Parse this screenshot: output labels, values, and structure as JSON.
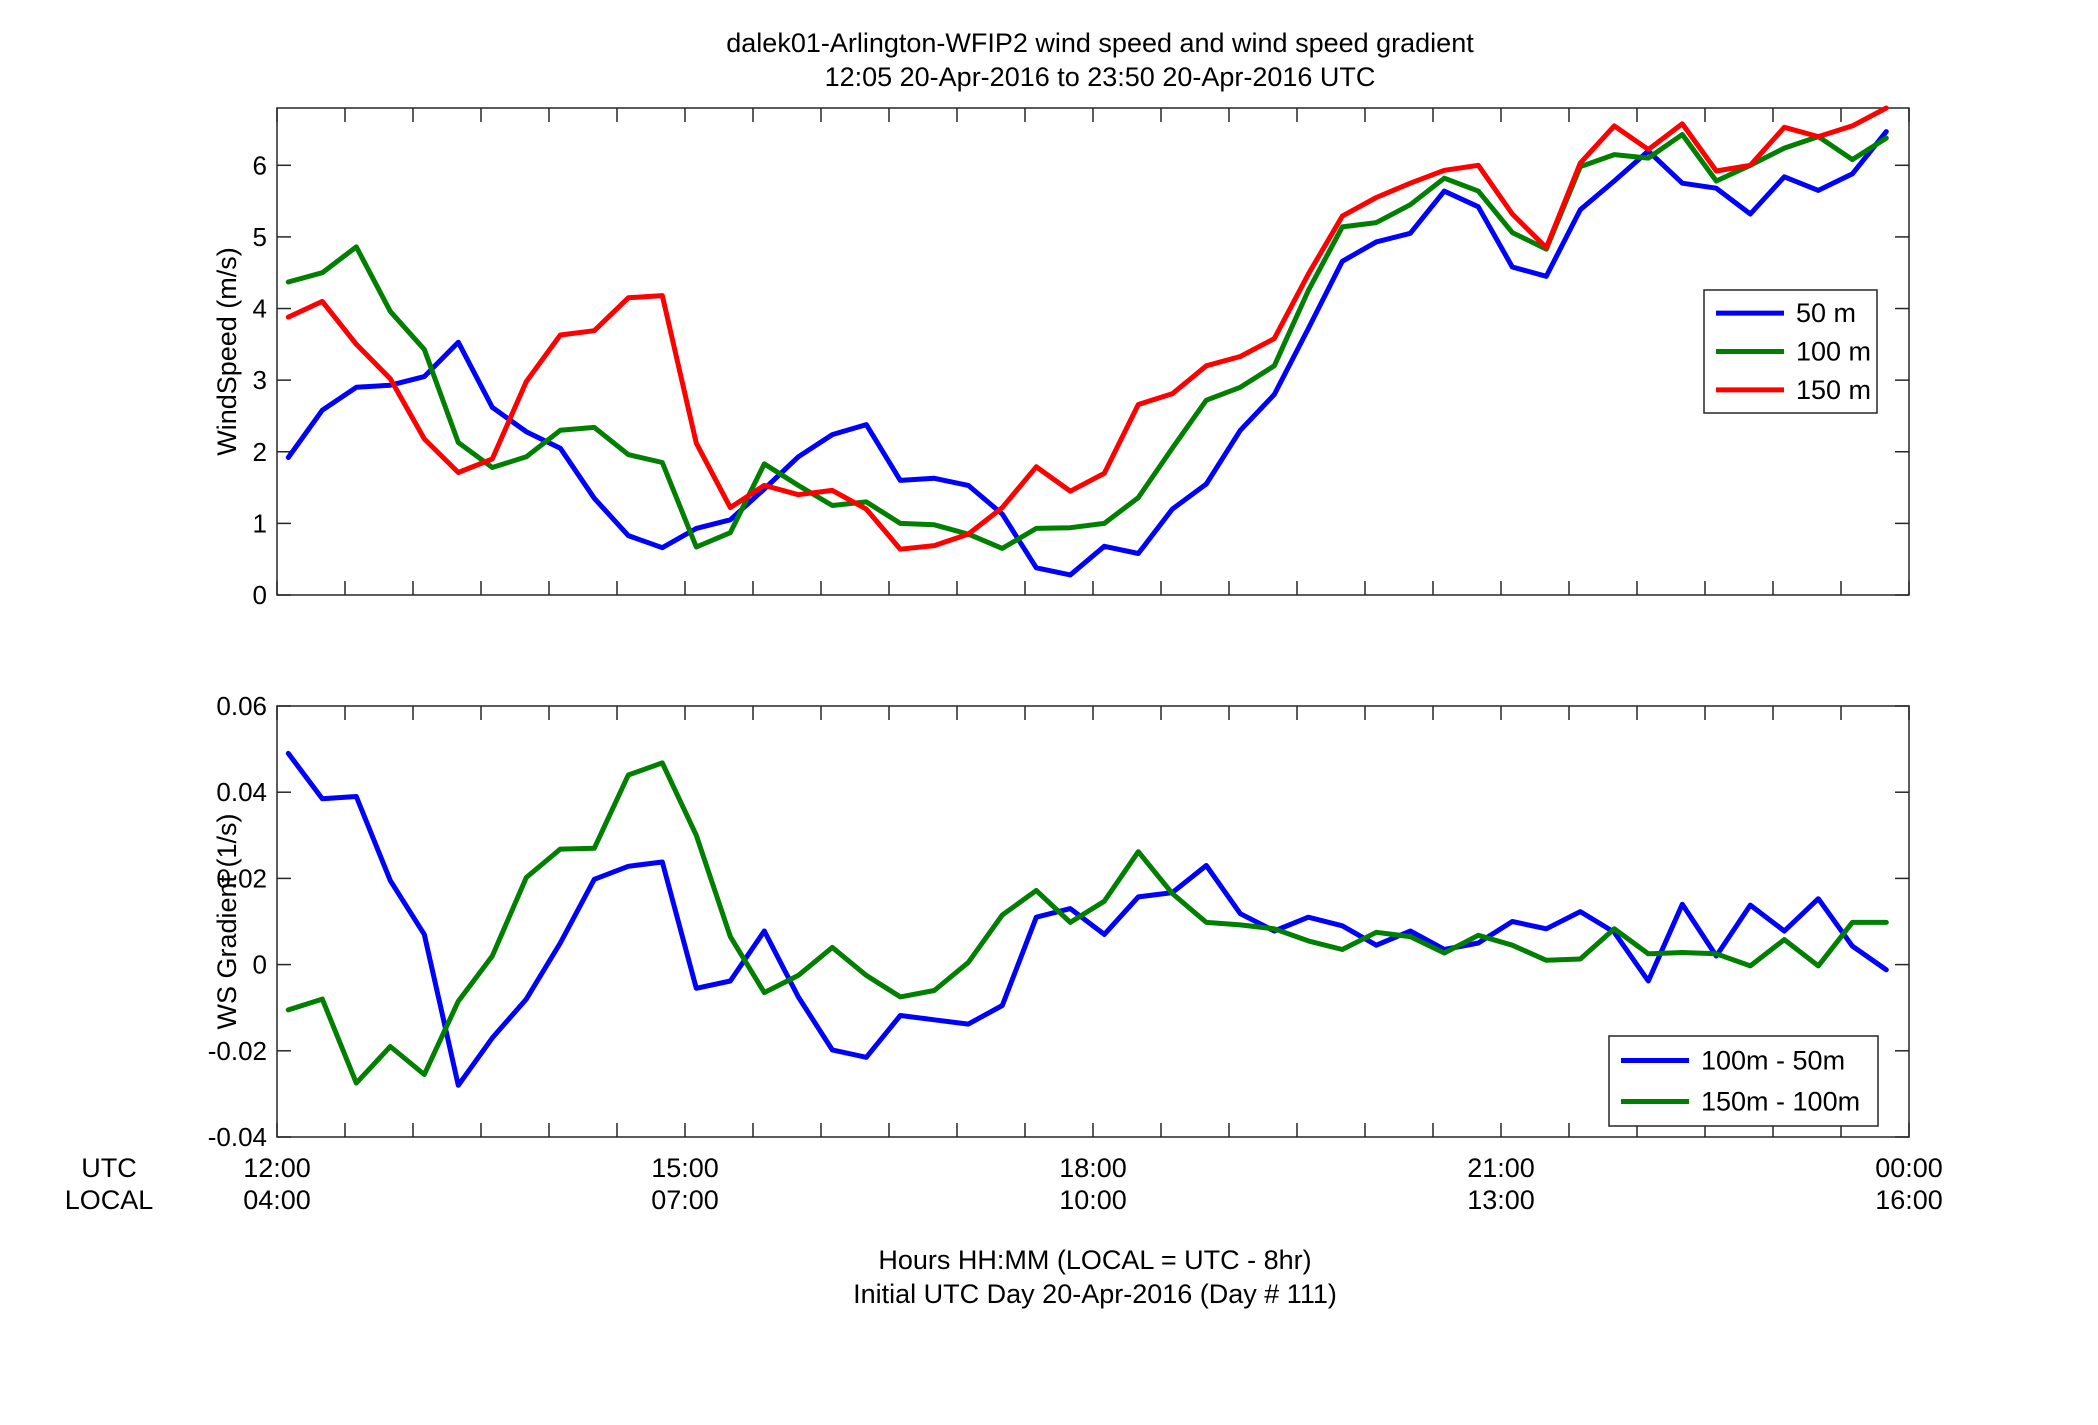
{
  "figure": {
    "title_line1": "dalek01-Arlington-WFIP2  wind speed and wind speed gradient",
    "title_line2": "12:05 20-Apr-2016 to 23:50 20-Apr-2016  UTC",
    "xlabel_line1": "Hours HH:MM  (LOCAL = UTC - 8hr)",
    "xlabel_line2": "Initial UTC Day 20-Apr-2016 (Day # 111)",
    "utc_row_label": "UTC",
    "local_row_label": "LOCAL",
    "utc_ticks": [
      "12:00",
      "15:00",
      "18:00",
      "21:00",
      "00:00"
    ],
    "local_ticks": [
      "04:00",
      "07:00",
      "10:00",
      "13:00",
      "16:00"
    ],
    "colors": {
      "blue": "#0000ff",
      "green": "#007f00",
      "red": "#ff0000"
    }
  },
  "chart_data": [
    {
      "type": "line",
      "ylabel": "WindSpeed (m/s)",
      "xlim": [
        12.0,
        24.0
      ],
      "ylim": [
        0,
        6.8
      ],
      "yticks": [
        0,
        1,
        2,
        3,
        4,
        5,
        6
      ],
      "ytick_labels": [
        "0",
        "1",
        "2",
        "3",
        "4",
        "5",
        "6"
      ],
      "x_unit": "hours UTC",
      "legend_position": "right",
      "grid": false,
      "x": [
        12.083,
        12.333,
        12.583,
        12.833,
        13.083,
        13.333,
        13.583,
        13.833,
        14.083,
        14.333,
        14.583,
        14.833,
        15.083,
        15.333,
        15.583,
        15.833,
        16.083,
        16.333,
        16.583,
        16.833,
        17.083,
        17.333,
        17.583,
        17.833,
        18.083,
        18.333,
        18.583,
        18.833,
        19.083,
        19.333,
        19.583,
        19.833,
        20.083,
        20.333,
        20.583,
        20.833,
        21.083,
        21.333,
        21.583,
        21.833,
        22.083,
        22.333,
        22.583,
        22.833,
        23.083,
        23.333,
        23.583,
        23.833
      ],
      "series": [
        {
          "name": "50 m",
          "color": "#0000ff",
          "values": [
            1.92,
            2.58,
            2.9,
            2.93,
            3.05,
            3.53,
            2.62,
            2.28,
            2.05,
            1.35,
            0.83,
            0.66,
            0.93,
            1.05,
            1.48,
            1.93,
            2.24,
            2.38,
            1.6,
            1.63,
            1.53,
            1.13,
            0.38,
            0.28,
            0.68,
            0.58,
            1.2,
            1.55,
            2.3,
            2.8,
            3.72,
            4.66,
            4.93,
            5.05,
            5.64,
            5.42,
            4.58,
            4.45,
            5.38,
            5.78,
            6.2,
            5.75,
            5.68,
            5.32,
            5.84,
            5.65,
            5.88,
            6.47
          ]
        },
        {
          "name": "100 m",
          "color": "#007f00",
          "values": [
            4.37,
            4.5,
            4.86,
            3.96,
            3.43,
            2.13,
            1.78,
            1.93,
            2.3,
            2.34,
            1.96,
            1.85,
            0.67,
            0.87,
            1.83,
            1.53,
            1.25,
            1.3,
            1.0,
            0.98,
            0.85,
            0.65,
            0.93,
            0.94,
            1.0,
            1.36,
            2.05,
            2.72,
            2.9,
            3.2,
            4.25,
            5.14,
            5.2,
            5.45,
            5.82,
            5.64,
            5.06,
            4.83,
            5.98,
            6.15,
            6.1,
            6.43,
            5.78,
            6.0,
            6.24,
            6.4,
            6.08,
            6.38
          ]
        },
        {
          "name": "150 m",
          "color": "#ff0000",
          "values": [
            3.88,
            4.1,
            3.5,
            3.02,
            2.18,
            1.71,
            1.9,
            2.98,
            3.63,
            3.69,
            4.15,
            4.18,
            2.12,
            1.22,
            1.53,
            1.4,
            1.46,
            1.2,
            0.64,
            0.69,
            0.85,
            1.22,
            1.79,
            1.45,
            1.7,
            2.66,
            2.81,
            3.2,
            3.33,
            3.58,
            4.48,
            5.29,
            5.55,
            5.75,
            5.93,
            6.0,
            5.32,
            4.85,
            6.03,
            6.55,
            6.22,
            6.58,
            5.92,
            6.0,
            6.53,
            6.4,
            6.55,
            6.8
          ]
        }
      ]
    },
    {
      "type": "line",
      "ylabel": "WS Gradient (1/s)",
      "xlim": [
        12.0,
        24.0
      ],
      "ylim": [
        -0.04,
        0.06
      ],
      "yticks": [
        -0.04,
        -0.02,
        0,
        0.02,
        0.04,
        0.06
      ],
      "ytick_labels": [
        "-0.04",
        "-0.02",
        "0",
        "0.02",
        "0.04",
        "0.06"
      ],
      "x_unit": "hours UTC",
      "legend_position": "bottom-right",
      "grid": false,
      "x": [
        12.083,
        12.333,
        12.583,
        12.833,
        13.083,
        13.333,
        13.583,
        13.833,
        14.083,
        14.333,
        14.583,
        14.833,
        15.083,
        15.333,
        15.583,
        15.833,
        16.083,
        16.333,
        16.583,
        16.833,
        17.083,
        17.333,
        17.583,
        17.833,
        18.083,
        18.333,
        18.583,
        18.833,
        19.083,
        19.333,
        19.583,
        19.833,
        20.083,
        20.333,
        20.583,
        20.833,
        21.083,
        21.333,
        21.583,
        21.833,
        22.083,
        22.333,
        22.583,
        22.833,
        23.083,
        23.333,
        23.583,
        23.833
      ],
      "series": [
        {
          "name": "100m - 50m",
          "color": "#0000ff",
          "values": [
            0.049,
            0.0385,
            0.039,
            0.0195,
            0.007,
            -0.028,
            -0.017,
            -0.008,
            0.005,
            0.0198,
            0.0228,
            0.0238,
            -0.0055,
            -0.0038,
            0.0078,
            -0.0075,
            -0.0198,
            -0.0215,
            -0.0118,
            -0.0128,
            -0.0138,
            -0.0095,
            0.011,
            0.013,
            0.007,
            0.0157,
            0.0167,
            0.023,
            0.0118,
            0.0078,
            0.011,
            0.009,
            0.0045,
            0.0078,
            0.0035,
            0.005,
            0.01,
            0.0083,
            0.0123,
            0.0075,
            -0.0038,
            0.014,
            0.002,
            0.0138,
            0.0078,
            0.0153,
            0.0043,
            -0.0012
          ]
        },
        {
          "name": "150m - 100m",
          "color": "#007f00",
          "values": [
            -0.0105,
            -0.008,
            -0.0275,
            -0.019,
            -0.0255,
            -0.0085,
            0.002,
            0.0202,
            0.0268,
            0.027,
            0.044,
            0.0468,
            0.03,
            0.0065,
            -0.0065,
            -0.0025,
            0.004,
            -0.0025,
            -0.0075,
            -0.006,
            0.0005,
            0.0115,
            0.0172,
            0.0098,
            0.0147,
            0.0262,
            0.0165,
            0.0098,
            0.0092,
            0.0083,
            0.0055,
            0.0035,
            0.0075,
            0.0065,
            0.0027,
            0.0068,
            0.0045,
            0.001,
            0.0013,
            0.0083,
            0.0025,
            0.0028,
            0.0025,
            -0.0003,
            0.0058,
            -0.0003,
            0.0098,
            0.0098
          ]
        }
      ]
    }
  ]
}
